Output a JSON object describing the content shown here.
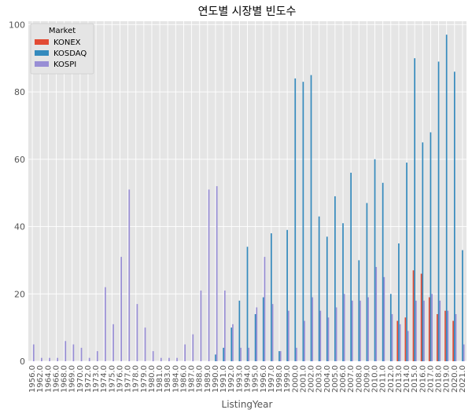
{
  "chart_data": {
    "type": "bar",
    "title": "연도별 시장별 빈도수",
    "xlabel": "ListingYear",
    "ylabel": "",
    "ylim": [
      0,
      101
    ],
    "yticks": [
      0,
      20,
      40,
      60,
      80,
      100
    ],
    "grid": true,
    "legend": {
      "title": "Market",
      "placement": "top-left"
    },
    "categories": [
      "1956.0",
      "1962.0",
      "1964.0",
      "1966.0",
      "1968.0",
      "1969.0",
      "1970.0",
      "1972.0",
      "1973.0",
      "1974.0",
      "1975.0",
      "1976.0",
      "1977.0",
      "1978.0",
      "1979.0",
      "1980.0",
      "1981.0",
      "1983.0",
      "1984.0",
      "1986.0",
      "1987.0",
      "1988.0",
      "1989.0",
      "1990.0",
      "1991.0",
      "1992.0",
      "1993.0",
      "1994.0",
      "1995.0",
      "1996.0",
      "1997.0",
      "1998.0",
      "1999.0",
      "2000.0",
      "2001.0",
      "2002.0",
      "2003.0",
      "2004.0",
      "2005.0",
      "2006.0",
      "2007.0",
      "2008.0",
      "2009.0",
      "2010.0",
      "2011.0",
      "2012.0",
      "2013.0",
      "2014.0",
      "2015.0",
      "2016.0",
      "2017.0",
      "2018.0",
      "2019.0",
      "2020.0",
      "2021.0"
    ],
    "series": [
      {
        "name": "KONEX",
        "color": "#e24a33",
        "values": [
          0,
          0,
          0,
          0,
          0,
          0,
          0,
          0,
          0,
          0,
          0,
          0,
          0,
          0,
          0,
          0,
          0,
          0,
          0,
          0,
          0,
          0,
          0,
          0,
          0,
          0,
          0,
          0,
          0,
          0,
          0,
          0,
          0,
          0,
          0,
          0,
          0,
          0,
          0,
          0,
          0,
          0,
          0,
          0,
          0,
          0,
          12,
          13,
          27,
          26,
          19,
          14,
          15,
          12,
          0
        ]
      },
      {
        "name": "KOSDAQ",
        "color": "#348abd",
        "values": [
          0,
          0,
          0,
          0,
          0,
          0,
          0,
          0,
          0,
          0,
          0,
          0,
          0,
          0,
          0,
          0,
          0,
          0,
          0,
          0,
          0,
          0,
          0,
          2,
          4,
          10,
          18,
          34,
          14,
          19,
          38,
          3,
          39,
          84,
          83,
          85,
          43,
          37,
          49,
          41,
          56,
          30,
          47,
          60,
          53,
          20,
          35,
          59,
          90,
          65,
          68,
          89,
          97,
          86,
          33
        ]
      },
      {
        "name": "KOSPI",
        "color": "#988ed5",
        "values": [
          5,
          1,
          1,
          1,
          6,
          5,
          4,
          1,
          3,
          22,
          11,
          31,
          51,
          17,
          10,
          3,
          1,
          1,
          1,
          5,
          8,
          21,
          51,
          52,
          21,
          11,
          4,
          4,
          16,
          31,
          17,
          3,
          15,
          4,
          12,
          19,
          15,
          13,
          16,
          20,
          18,
          18,
          19,
          28,
          25,
          14,
          11,
          9,
          18,
          18,
          20,
          18,
          15,
          14,
          5
        ]
      }
    ]
  }
}
